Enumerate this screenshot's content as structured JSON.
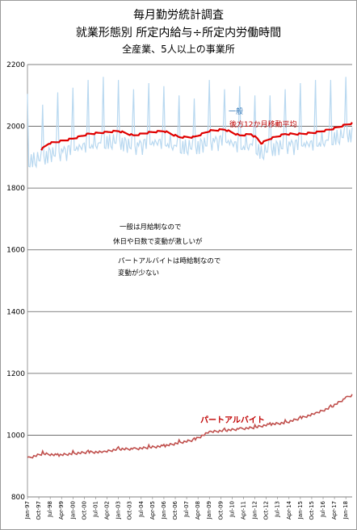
{
  "title_lines": [
    "毎月勤労統計調査",
    "就業形態別 所定内給与÷所定内労働時間",
    "全産業、5人以上の事業所"
  ],
  "annotations": {
    "general_label": "一般",
    "moving_avg_label": "後方12か月移動平均",
    "part_time_label": "パートアルバイト",
    "note_lines": [
      "一般は月給制なので",
      "休日や日数で変動が激しいが",
      "パートアルバイトは時給制なので",
      "変動が少ない"
    ]
  },
  "colors": {
    "general_monthly": "#b8d8f0",
    "general_moving_avg": "#e00000",
    "part_time": "#c0504d",
    "general_label": "#2e75b6",
    "moving_avg_label": "#c00000",
    "part_time_label": "#c00000",
    "gridline": "#595959"
  },
  "chart_data": {
    "type": "line",
    "title": "毎月勤労統計調査 就業形態別 所定内給与÷所定内労働時間",
    "subtitle": "全産業、5人以上の事業所",
    "xlabel": "",
    "ylabel": "",
    "ylim": [
      800,
      2200
    ],
    "yticks": [
      800,
      1000,
      1200,
      1400,
      1600,
      1800,
      2000,
      2200
    ],
    "grid": true,
    "x_start": "1997-01",
    "x_end": "2018-06",
    "xtick_labels": [
      "Jan-97",
      "Oct-97",
      "Jul-98",
      "Apr-99",
      "Jan-00",
      "Oct-00",
      "Jul-01",
      "Apr-02",
      "Jan-03",
      "Oct-03",
      "Jul-04",
      "Apr-05",
      "Jan-06",
      "Oct-06",
      "Jul-07",
      "Apr-08",
      "Jan-09",
      "Oct-09",
      "Jul-10",
      "Apr-11",
      "Jan-12",
      "Oct-12",
      "Jul-13",
      "Apr-14",
      "Jan-15",
      "Oct-15",
      "Jul-16",
      "Apr-17",
      "Jan-18"
    ],
    "series": [
      {
        "key": "general_monthly",
        "anchors": [
          [
            "1997-01",
            2105
          ],
          [
            "1997-06",
            1880
          ],
          [
            "1998-01",
            2070
          ],
          [
            "1999-01",
            2110
          ],
          [
            "2000-01",
            2125
          ],
          [
            "2001-01",
            2150
          ],
          [
            "2002-01",
            2160
          ],
          [
            "2003-01",
            2150
          ],
          [
            "2004-01",
            2120
          ],
          [
            "2005-01",
            2140
          ],
          [
            "2006-01",
            2130
          ],
          [
            "2007-01",
            2100
          ],
          [
            "2008-01",
            2090
          ],
          [
            "2009-01",
            2150
          ],
          [
            "2010-01",
            2120
          ],
          [
            "2011-01",
            2130
          ],
          [
            "2012-01",
            2100
          ],
          [
            "2013-01",
            2100
          ],
          [
            "2014-01",
            2120
          ],
          [
            "2015-01",
            2140
          ],
          [
            "2016-01",
            2150
          ],
          [
            "2017-01",
            2150
          ],
          [
            "2018-01",
            2160
          ],
          [
            "2018-06",
            1980
          ]
        ]
      },
      {
        "key": "general_moving_avg",
        "anchors": [
          [
            "1997-12",
            1925
          ],
          [
            "1998-06",
            1945
          ],
          [
            "1999-01",
            1950
          ],
          [
            "2000-01",
            1960
          ],
          [
            "2001-01",
            1975
          ],
          [
            "2002-01",
            1980
          ],
          [
            "2003-01",
            1985
          ],
          [
            "2004-01",
            1970
          ],
          [
            "2005-01",
            1980
          ],
          [
            "2006-01",
            1985
          ],
          [
            "2007-01",
            1965
          ],
          [
            "2008-01",
            1965
          ],
          [
            "2009-01",
            1985
          ],
          [
            "2010-01",
            1990
          ],
          [
            "2011-01",
            1970
          ],
          [
            "2011-10",
            1975
          ],
          [
            "2012-03",
            1960
          ],
          [
            "2012-06",
            1945
          ],
          [
            "2013-01",
            1960
          ],
          [
            "2014-01",
            1975
          ],
          [
            "2015-01",
            1975
          ],
          [
            "2016-01",
            1980
          ],
          [
            "2017-01",
            1990
          ],
          [
            "2018-01",
            2005
          ],
          [
            "2018-06",
            2010
          ]
        ]
      },
      {
        "key": "part_time",
        "anchors": [
          [
            "1997-01",
            925
          ],
          [
            "1998-01",
            940
          ],
          [
            "1999-01",
            935
          ],
          [
            "2000-01",
            940
          ],
          [
            "2001-01",
            945
          ],
          [
            "2002-01",
            945
          ],
          [
            "2003-01",
            955
          ],
          [
            "2004-01",
            955
          ],
          [
            "2005-01",
            960
          ],
          [
            "2006-01",
            965
          ],
          [
            "2007-01",
            975
          ],
          [
            "2008-01",
            985
          ],
          [
            "2009-01",
            1010
          ],
          [
            "2010-01",
            1015
          ],
          [
            "2011-01",
            1020
          ],
          [
            "2012-01",
            1025
          ],
          [
            "2013-01",
            1035
          ],
          [
            "2014-01",
            1040
          ],
          [
            "2015-01",
            1055
          ],
          [
            "2016-01",
            1070
          ],
          [
            "2017-01",
            1090
          ],
          [
            "2018-01",
            1120
          ],
          [
            "2018-06",
            1130
          ]
        ]
      }
    ]
  }
}
